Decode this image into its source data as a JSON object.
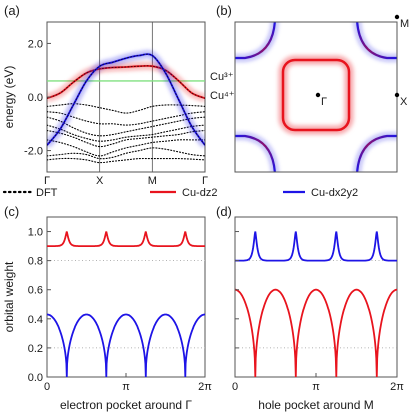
{
  "figure": {
    "panel_labels": [
      "(a)",
      "(b)",
      "(c)",
      "(d)"
    ],
    "colors": {
      "dft": "#000000",
      "dz2": "#e8141e",
      "dx2y2": "#1e14e6",
      "fermi_line": "#80e080",
      "grid": "#9a9a9a"
    }
  },
  "chart_data": [
    {
      "panel": "(a)",
      "type": "line",
      "ylabel": "energy (eV)",
      "ylim": [
        -2.8,
        2.8
      ],
      "yticks": [
        "2.0",
        "0.0",
        "-2.0"
      ],
      "ytick_values": [
        2.0,
        0.0,
        -2.0
      ],
      "xticks": [
        "Γ",
        "X",
        "M",
        "Γ"
      ],
      "xtick_positions": [
        0,
        1,
        2,
        3
      ],
      "reference_line": {
        "value": 0.6
      },
      "annotations": [
        "Cu³⁺",
        "Cu⁴⁺"
      ],
      "series": [
        {
          "name": "DFT",
          "style": "dotted",
          "color": "#000000",
          "x": [
            0,
            0.25,
            0.5,
            0.75,
            1,
            1.25,
            1.5,
            1.75,
            2,
            2.25,
            2.5,
            2.75,
            3
          ],
          "bands": [
            [
              -0.35,
              -0.3,
              -0.25,
              -0.3,
              -0.4,
              -0.5,
              -0.6,
              -0.5,
              -0.35,
              -0.3,
              -0.3,
              -0.32,
              -0.35
            ],
            [
              -0.55,
              -0.6,
              -0.75,
              -0.9,
              -1.0,
              -1.0,
              -1.05,
              -1.0,
              -0.9,
              -0.8,
              -0.7,
              -0.6,
              -0.55
            ],
            [
              -0.75,
              -0.9,
              -1.15,
              -1.35,
              -1.45,
              -1.4,
              -1.3,
              -1.2,
              -1.1,
              -1.0,
              -0.9,
              -0.8,
              -0.75
            ],
            [
              -1.05,
              -1.2,
              -1.4,
              -1.55,
              -1.65,
              -1.6,
              -1.5,
              -1.45,
              -1.4,
              -1.3,
              -1.2,
              -1.1,
              -1.05
            ],
            [
              -1.25,
              -1.35,
              -1.5,
              -1.7,
              -1.85,
              -1.75,
              -1.6,
              -1.55,
              -1.5,
              -1.45,
              -1.4,
              -1.3,
              -1.25
            ],
            [
              -1.6,
              -1.7,
              -1.85,
              -2.05,
              -2.2,
              -2.05,
              -1.9,
              -1.8,
              -1.7,
              -1.65,
              -1.6,
              -1.6,
              -1.6
            ],
            [
              -2.2,
              -2.15,
              -2.1,
              -2.15,
              -2.3,
              -2.25,
              -2.1,
              -2.0,
              -1.9,
              -1.95,
              -2.05,
              -2.15,
              -2.2
            ],
            [
              -2.35,
              -2.3,
              -2.3,
              -2.35,
              -2.45,
              -2.4,
              -2.35,
              -2.3,
              -2.3,
              -2.3,
              -2.3,
              -2.32,
              -2.35
            ]
          ]
        },
        {
          "name": "Cu-dz2",
          "color": "#e8141e",
          "x": [
            0,
            0.25,
            0.5,
            0.75,
            1,
            1.25,
            1.5,
            1.75,
            2,
            2.25,
            2.5,
            2.75,
            3
          ],
          "y": [
            -0.05,
            0.15,
            0.55,
            0.9,
            1.05,
            1.1,
            1.12,
            1.15,
            1.15,
            1.0,
            0.6,
            0.15,
            -0.05
          ]
        },
        {
          "name": "Cu-dx2y2",
          "color": "#1e14e6",
          "x": [
            0,
            0.25,
            0.5,
            0.75,
            1,
            1.25,
            1.5,
            1.75,
            2,
            2.25,
            2.5,
            2.75,
            3
          ],
          "y": [
            -1.8,
            -1.2,
            -0.3,
            0.6,
            1.15,
            1.3,
            1.45,
            1.55,
            1.55,
            0.9,
            -0.1,
            -1.1,
            -1.8
          ]
        }
      ]
    },
    {
      "panel": "(b)",
      "type": "heatmap",
      "labels": [
        "Γ",
        "X",
        "M"
      ],
      "features": [
        {
          "name": "Cu-dz2",
          "shape": "closed electron pocket around Γ",
          "color": "#e8141e"
        },
        {
          "name": "Cu-dx2y2",
          "shape": "hole pockets around M",
          "color": "#1e14e6"
        }
      ]
    },
    {
      "panel": "(c)",
      "type": "line",
      "ylabel": "orbital weight",
      "xlabel": "electron pocket around Γ",
      "xticks": [
        "0",
        "π",
        "2π"
      ],
      "xtick_values": [
        0,
        3.14159,
        6.28318
      ],
      "yticks": [
        "0.0",
        "0.2",
        "0.4",
        "0.6",
        "0.8",
        "1.0"
      ],
      "ytick_values": [
        0.0,
        0.2,
        0.4,
        0.6,
        0.8,
        1.0
      ],
      "ylim": [
        0,
        1.1
      ],
      "dotted_grid": [
        0.8,
        0.2
      ],
      "series": [
        {
          "name": "Cu-dz2",
          "color": "#e8141e",
          "peaks_at": [
            0.7854,
            2.3562,
            3.927,
            5.4978
          ],
          "base": 0.9,
          "peak": 1.0
        },
        {
          "name": "Cu-dx2y2",
          "color": "#1e14e6",
          "zeros_at": [
            0.7854,
            2.3562,
            3.927,
            5.4978
          ],
          "max": 0.43
        }
      ]
    },
    {
      "panel": "(d)",
      "type": "line",
      "xlabel": "hole pocket around M",
      "xticks": [
        "0",
        "π",
        "2π"
      ],
      "xtick_values": [
        0,
        3.14159,
        6.28318
      ],
      "ylim": [
        0,
        1.1
      ],
      "dotted_grid": [
        0.8,
        0.2
      ],
      "series": [
        {
          "name": "Cu-dx2y2",
          "color": "#1e14e6",
          "peaks_at": [
            0.7854,
            2.3562,
            3.927,
            5.4978
          ],
          "base": 0.8,
          "peak": 1.0
        },
        {
          "name": "Cu-dz2",
          "color": "#e8141e",
          "zeros_at": [
            0.7854,
            2.3562,
            3.927,
            5.4978
          ],
          "max": 0.6
        }
      ]
    }
  ],
  "legend": {
    "items": [
      {
        "label": "DFT",
        "color": "#000000",
        "style": "dotted"
      },
      {
        "label": "Cu-dz2",
        "color": "#e8141e",
        "style": "solid"
      },
      {
        "label": "Cu-dx2y2",
        "color": "#1e14e6",
        "style": "solid"
      }
    ]
  }
}
